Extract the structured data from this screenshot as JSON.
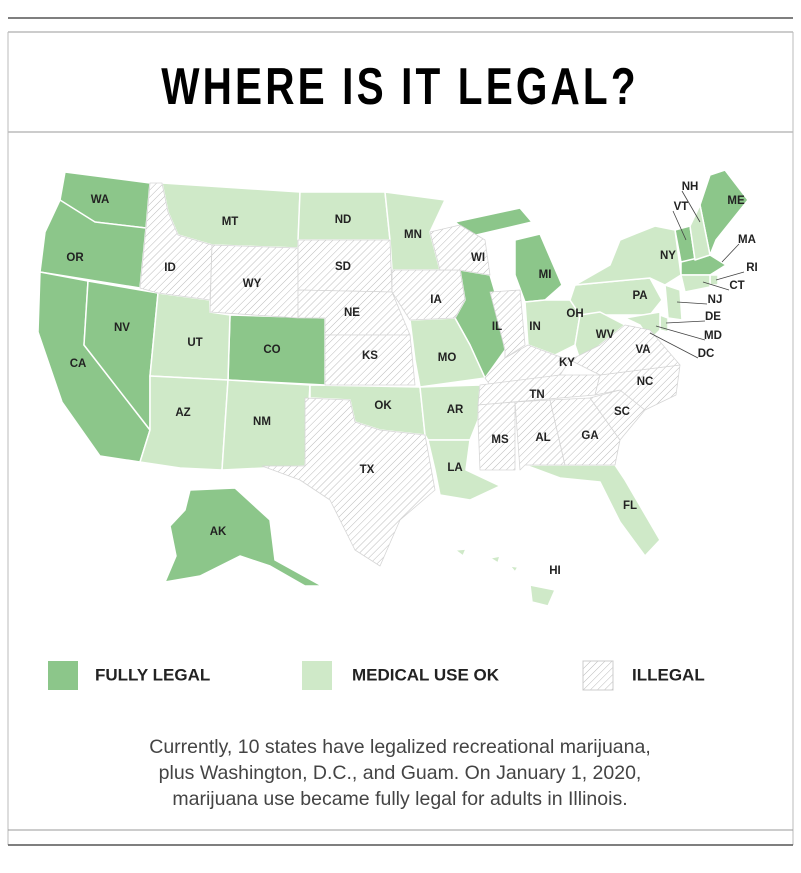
{
  "title": "WHERE IS IT LEGAL?",
  "legend": [
    {
      "label": "FULLY LEGAL",
      "states": [
        "WA",
        "OR",
        "CA",
        "NV",
        "CO",
        "MI",
        "IL",
        "VT",
        "ME",
        "MA",
        "DC",
        "AK"
      ]
    },
    {
      "label": "MEDICAL USE OK",
      "states": [
        "MT",
        "ND",
        "MN",
        "UT",
        "AZ",
        "NM",
        "OK",
        "MO",
        "AR",
        "LA",
        "OH",
        "PA",
        "NY",
        "WV",
        "NH",
        "NJ",
        "DE",
        "MD",
        "RI",
        "CT",
        "FL",
        "HI"
      ]
    },
    {
      "label": "ILLEGAL",
      "states": [
        "ID",
        "WY",
        "SD",
        "NE",
        "KS",
        "TX",
        "IA",
        "WI",
        "IN",
        "KY",
        "TN",
        "MS",
        "AL",
        "GA",
        "SC",
        "NC",
        "VA"
      ]
    }
  ],
  "caption": [
    "Currently, 10 states have legalized recreational marijuana,",
    "plus Washington, D.C., and Guam.  On January 1, 2020,",
    "marijuana use became fully legal for adults in Illinois."
  ]
}
